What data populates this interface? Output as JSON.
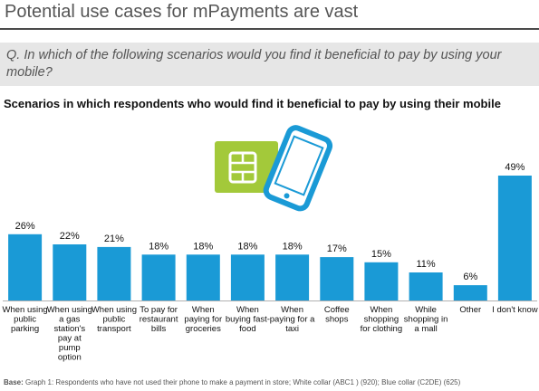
{
  "header": {
    "title": "Potential use cases for mPayments are vast",
    "question": "Q. In which of the following scenarios would you find it beneficial to pay by using your mobile?"
  },
  "footnote": {
    "label": "Base:",
    "text": "Graph 1: Respondents who have not used their phone to make a payment in store; White collar (ABC1 ) (920); Blue collar (C2DE) (625)"
  },
  "icon": {
    "name": "sim-card-and-mobile-phone-icon",
    "sim_color": "#a3c93a",
    "phone_color": "#1a9ad6"
  },
  "chart_data": {
    "type": "bar",
    "title": "Scenarios in which respondents who would find it beneficial to pay by using their mobile",
    "categories": [
      "When using public parking",
      "When using a gas station's pay at pump option",
      "When using public transport",
      "To pay for restaurant bills",
      "When paying for groceries",
      "When buying fast-food",
      "When paying for a taxi",
      "Coffee shops",
      "When shopping for clothing",
      "While shopping in a mall",
      "Other",
      "I don't know"
    ],
    "category_lines": [
      [
        "When using",
        "public",
        "parking"
      ],
      [
        "When using",
        "a gas",
        "station's",
        "pay at",
        "pump",
        "option"
      ],
      [
        "When using",
        "public",
        "transport"
      ],
      [
        "To pay for",
        "restaurant",
        "bills"
      ],
      [
        "When",
        "paying for",
        "groceries"
      ],
      [
        "When",
        "buying fast-",
        "food"
      ],
      [
        "When",
        "paying for a",
        "taxi"
      ],
      [
        "Coffee",
        "shops"
      ],
      [
        "When",
        "shopping",
        "for clothing"
      ],
      [
        "While",
        "shopping in",
        "a mall"
      ],
      [
        "Other"
      ],
      [
        "I don't know"
      ]
    ],
    "values": [
      26,
      22,
      21,
      18,
      18,
      18,
      18,
      17,
      15,
      11,
      6,
      49
    ],
    "value_labels": [
      "26%",
      "22%",
      "21%",
      "18%",
      "18%",
      "18%",
      "18%",
      "17%",
      "15%",
      "11%",
      "6%",
      "49%"
    ],
    "unit": "%",
    "ylim": [
      0,
      49
    ],
    "bar_color": "#1a9ad6",
    "grid": false,
    "legend": "none"
  }
}
